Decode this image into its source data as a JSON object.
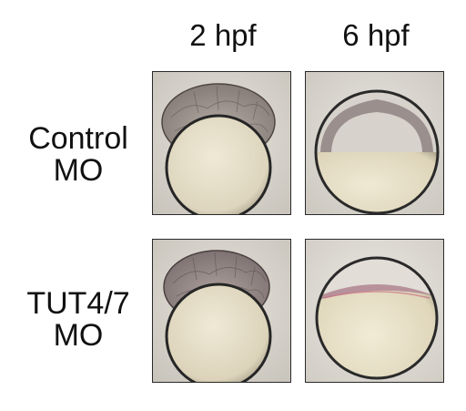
{
  "columns": [
    {
      "label": "2 hpf"
    },
    {
      "label": "6 hpf"
    }
  ],
  "rows": [
    {
      "line1": "Control",
      "line2": "MO"
    },
    {
      "line1": "TUT4/7",
      "line2": "MO"
    }
  ],
  "panels": [
    {
      "stage": "2 hpf",
      "condition": "Control MO"
    },
    {
      "stage": "6 hpf",
      "condition": "Control MO"
    },
    {
      "stage": "2 hpf",
      "condition": "TUT4/7 MO"
    },
    {
      "stage": "6 hpf",
      "condition": "TUT4/7 MO"
    }
  ],
  "colors": {
    "background": "#d9d6cf",
    "yolk": "#e8e2cc",
    "cells": "#8a7e7a",
    "outline": "#2a2a2a"
  }
}
